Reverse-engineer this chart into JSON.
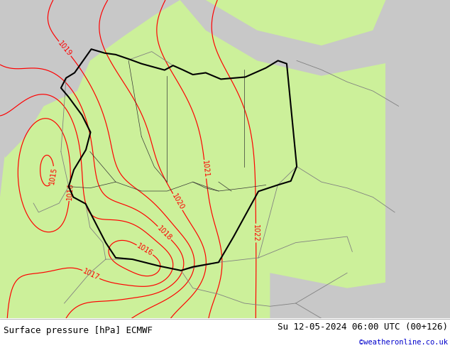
{
  "title_left": "Surface pressure [hPa] ECMWF",
  "title_right": "Su 12-05-2024 06:00 UTC (00+126)",
  "copyright": "©weatheronline.co.uk",
  "bg_green": "#ccf09a",
  "bg_gray_sea": "#c8c8c8",
  "bg_gray_land": "#c8c8c8",
  "contour_color": "#ff0000",
  "border_main": "#000000",
  "border_other": "#808080",
  "bottom_bg": "#f0f0f0",
  "contour_levels": [
    1015,
    1016,
    1017,
    1018,
    1019,
    1020,
    1021,
    1022
  ],
  "label_fontsize": 7,
  "title_fontsize": 9,
  "fig_width": 6.34,
  "fig_height": 4.9,
  "dpi": 100,
  "lon_min": 3.5,
  "lon_max": 21.0,
  "lat_min": 46.0,
  "lat_max": 56.5
}
